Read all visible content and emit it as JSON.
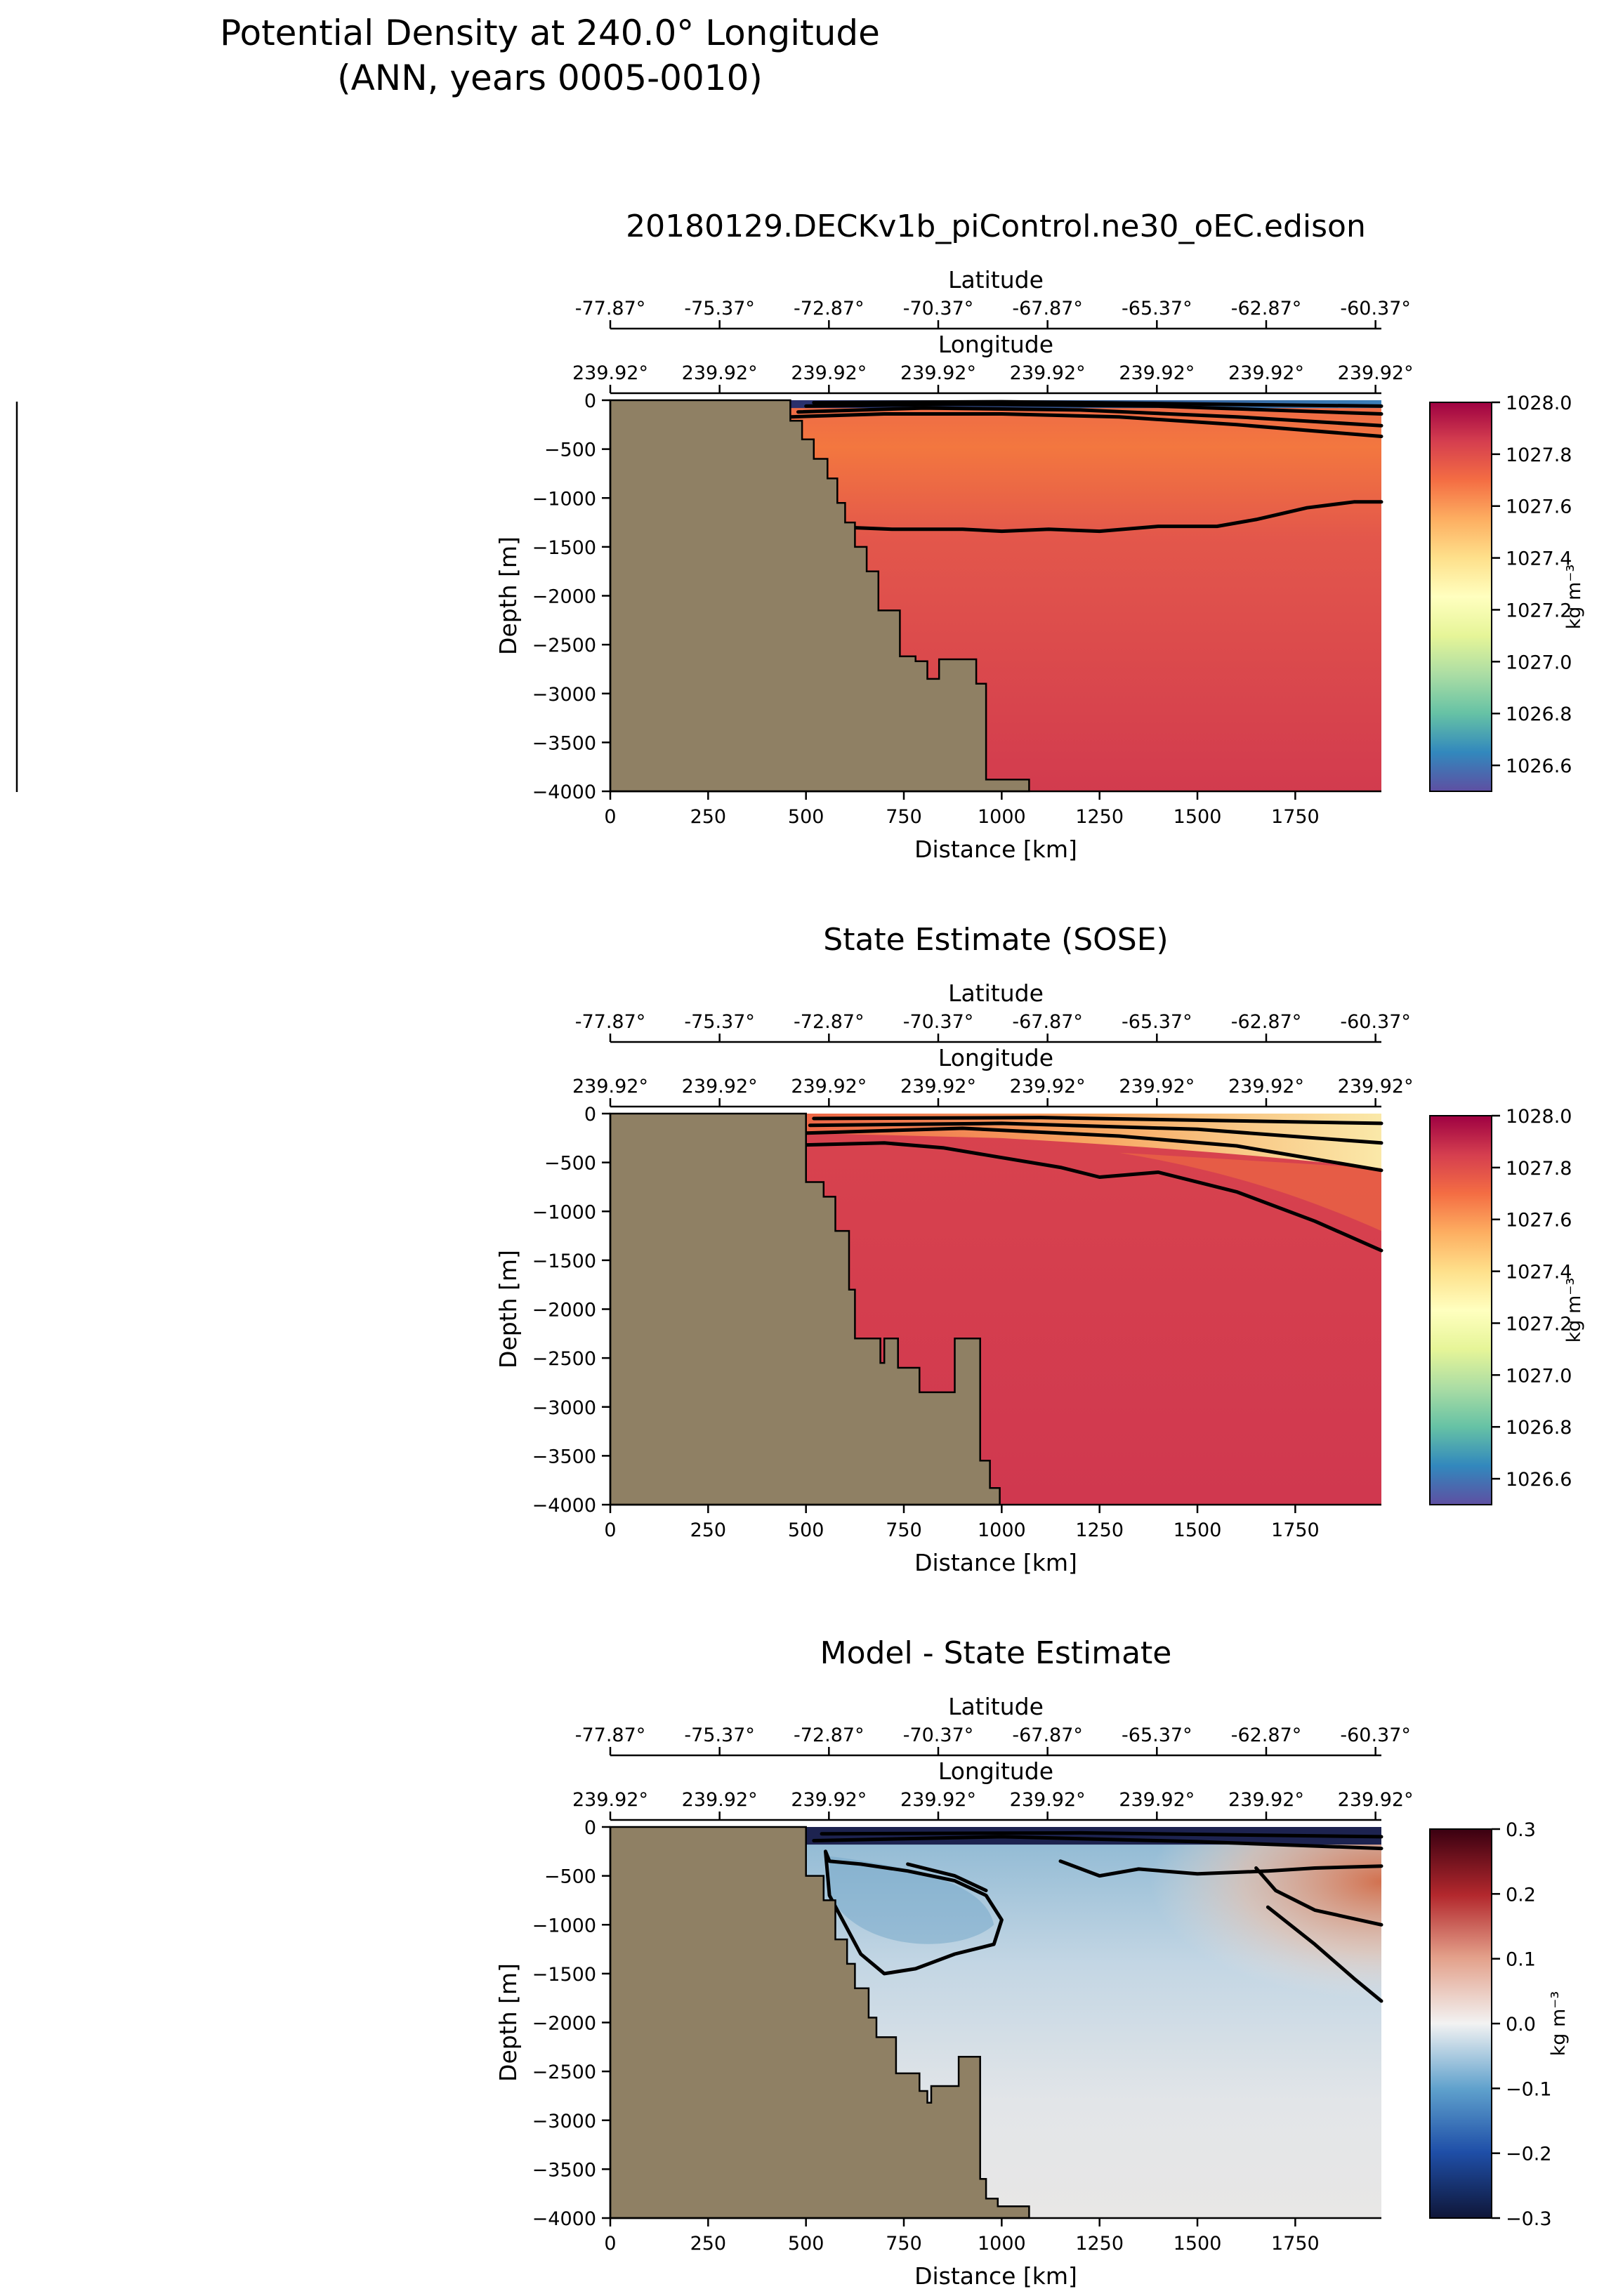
{
  "figure": {
    "title_line1": "Potential Density at 240.0° Longitude",
    "title_line2": "(ANN, years 0005-0010)"
  },
  "chart_data": [
    {
      "type": "heatmap",
      "title": "20180129.DECKv1b_piControl.ne30_oEC.edison",
      "xlabel": "Distance [km]",
      "ylabel": "Depth [m]",
      "top_axis1_label": "Latitude",
      "top_axis2_label": "Longitude",
      "xlim": [
        0,
        1970
      ],
      "ylim": [
        -4000,
        0
      ],
      "x_ticks": [
        0,
        250,
        500,
        750,
        1000,
        1250,
        1500,
        1750
      ],
      "y_ticks": [
        0,
        -500,
        -1000,
        -1500,
        -2000,
        -2500,
        -3000,
        -3500,
        -4000
      ],
      "latitude_ticks": [
        "-77.87°",
        "-75.37°",
        "-72.87°",
        "-70.37°",
        "-67.87°",
        "-65.37°",
        "-62.87°",
        "-60.37°"
      ],
      "longitude_ticks": [
        "239.92°",
        "239.92°",
        "239.92°",
        "239.92°",
        "239.92°",
        "239.92°",
        "239.92°",
        "239.92°"
      ],
      "colorbar": {
        "label": "kg m⁻³",
        "min": 1026.5,
        "max": 1028.0,
        "ticks": [
          1026.6,
          1026.8,
          1027.0,
          1027.2,
          1027.4,
          1027.6,
          1027.8,
          1028.0
        ],
        "colormap": "Spectral_r"
      },
      "bathymetry": [
        [
          0,
          0
        ],
        [
          460,
          0
        ],
        [
          460,
          -210
        ],
        [
          490,
          -210
        ],
        [
          490,
          -400
        ],
        [
          520,
          -400
        ],
        [
          520,
          -600
        ],
        [
          555,
          -600
        ],
        [
          555,
          -800
        ],
        [
          580,
          -800
        ],
        [
          580,
          -1050
        ],
        [
          600,
          -1050
        ],
        [
          600,
          -1250
        ],
        [
          625,
          -1250
        ],
        [
          625,
          -1500
        ],
        [
          655,
          -1500
        ],
        [
          655,
          -1750
        ],
        [
          685,
          -1750
        ],
        [
          685,
          -2150
        ],
        [
          740,
          -2150
        ],
        [
          740,
          -2620
        ],
        [
          780,
          -2620
        ],
        [
          780,
          -2670
        ],
        [
          810,
          -2670
        ],
        [
          810,
          -2850
        ],
        [
          840,
          -2850
        ],
        [
          840,
          -2650
        ],
        [
          935,
          -2650
        ],
        [
          935,
          -2900
        ],
        [
          960,
          -2900
        ],
        [
          960,
          -3880
        ],
        [
          1070,
          -3880
        ],
        [
          1070,
          -4000
        ],
        [
          0,
          -4000
        ]
      ],
      "contours": [
        [
          [
            460,
            -170
          ],
          [
            700,
            -140
          ],
          [
            1000,
            -140
          ],
          [
            1300,
            -170
          ],
          [
            1600,
            -250
          ],
          [
            1970,
            -370
          ]
        ],
        [
          [
            480,
            -120
          ],
          [
            800,
            -80
          ],
          [
            1200,
            -100
          ],
          [
            1600,
            -170
          ],
          [
            1970,
            -260
          ]
        ],
        [
          [
            500,
            -60
          ],
          [
            900,
            -40
          ],
          [
            1400,
            -60
          ],
          [
            1970,
            -140
          ]
        ],
        [
          [
            520,
            -25
          ],
          [
            1000,
            -15
          ],
          [
            1970,
            -60
          ]
        ],
        [
          [
            600,
            -1300
          ],
          [
            720,
            -1320
          ],
          [
            900,
            -1320
          ],
          [
            1000,
            -1340
          ],
          [
            1120,
            -1320
          ],
          [
            1250,
            -1340
          ],
          [
            1400,
            -1290
          ],
          [
            1550,
            -1290
          ],
          [
            1650,
            -1220
          ],
          [
            1780,
            -1100
          ],
          [
            1900,
            -1040
          ],
          [
            1970,
            -1040
          ]
        ]
      ],
      "surface_layer": {
        "depth_to": -80,
        "x_from": 460,
        "color_left": "#2a2f6b",
        "color_right": "#3b7fb8"
      }
    },
    {
      "type": "heatmap",
      "title": "State Estimate (SOSE)",
      "xlabel": "Distance [km]",
      "ylabel": "Depth [m]",
      "top_axis1_label": "Latitude",
      "top_axis2_label": "Longitude",
      "xlim": [
        0,
        1970
      ],
      "ylim": [
        -4000,
        0
      ],
      "x_ticks": [
        0,
        250,
        500,
        750,
        1000,
        1250,
        1500,
        1750
      ],
      "y_ticks": [
        0,
        -500,
        -1000,
        -1500,
        -2000,
        -2500,
        -3000,
        -3500,
        -4000
      ],
      "latitude_ticks": [
        "-77.87°",
        "-75.37°",
        "-72.87°",
        "-70.37°",
        "-67.87°",
        "-65.37°",
        "-62.87°",
        "-60.37°"
      ],
      "longitude_ticks": [
        "239.92°",
        "239.92°",
        "239.92°",
        "239.92°",
        "239.92°",
        "239.92°",
        "239.92°",
        "239.92°"
      ],
      "colorbar": {
        "label": "kg m⁻³",
        "min": 1026.5,
        "max": 1028.0,
        "ticks": [
          1026.6,
          1026.8,
          1027.0,
          1027.2,
          1027.4,
          1027.6,
          1027.8,
          1028.0
        ],
        "colormap": "Spectral_r"
      },
      "bathymetry": [
        [
          0,
          0
        ],
        [
          500,
          0
        ],
        [
          500,
          -700
        ],
        [
          545,
          -700
        ],
        [
          545,
          -850
        ],
        [
          575,
          -850
        ],
        [
          575,
          -1200
        ],
        [
          610,
          -1200
        ],
        [
          610,
          -1800
        ],
        [
          625,
          -1800
        ],
        [
          625,
          -2300
        ],
        [
          690,
          -2300
        ],
        [
          690,
          -2550
        ],
        [
          700,
          -2550
        ],
        [
          700,
          -2300
        ],
        [
          735,
          -2300
        ],
        [
          735,
          -2600
        ],
        [
          790,
          -2600
        ],
        [
          790,
          -2850
        ],
        [
          880,
          -2850
        ],
        [
          880,
          -2300
        ],
        [
          945,
          -2300
        ],
        [
          945,
          -3550
        ],
        [
          970,
          -3550
        ],
        [
          970,
          -3830
        ],
        [
          995,
          -3830
        ],
        [
          995,
          -4000
        ],
        [
          0,
          -4000
        ]
      ],
      "contours": [
        [
          [
            500,
            -320
          ],
          [
            700,
            -300
          ],
          [
            850,
            -350
          ],
          [
            1000,
            -450
          ],
          [
            1150,
            -550
          ],
          [
            1250,
            -650
          ],
          [
            1400,
            -600
          ],
          [
            1600,
            -800
          ],
          [
            1800,
            -1100
          ],
          [
            1970,
            -1400
          ]
        ],
        [
          [
            500,
            -200
          ],
          [
            900,
            -150
          ],
          [
            1300,
            -230
          ],
          [
            1600,
            -330
          ],
          [
            1970,
            -580
          ]
        ],
        [
          [
            510,
            -120
          ],
          [
            1000,
            -100
          ],
          [
            1500,
            -160
          ],
          [
            1970,
            -300
          ]
        ],
        [
          [
            520,
            -50
          ],
          [
            1100,
            -40
          ],
          [
            1970,
            -100
          ]
        ]
      ],
      "surface_layer": {
        "depth_to": 0,
        "x_from": 500,
        "color_left": "#ffffff",
        "color_right": "#ffffff"
      }
    },
    {
      "type": "heatmap",
      "title": "Model - State Estimate",
      "xlabel": "Distance [km]",
      "ylabel": "Depth [m]",
      "top_axis1_label": "Latitude",
      "top_axis2_label": "Longitude",
      "xlim": [
        0,
        1970
      ],
      "ylim": [
        -4000,
        0
      ],
      "x_ticks": [
        0,
        250,
        500,
        750,
        1000,
        1250,
        1500,
        1750
      ],
      "y_ticks": [
        0,
        -500,
        -1000,
        -1500,
        -2000,
        -2500,
        -3000,
        -3500,
        -4000
      ],
      "latitude_ticks": [
        "-77.87°",
        "-75.37°",
        "-72.87°",
        "-70.37°",
        "-67.87°",
        "-65.37°",
        "-62.87°",
        "-60.37°"
      ],
      "longitude_ticks": [
        "239.92°",
        "239.92°",
        "239.92°",
        "239.92°",
        "239.92°",
        "239.92°",
        "239.92°",
        "239.92°"
      ],
      "colorbar": {
        "label": "kg m⁻³",
        "min": -0.3,
        "max": 0.3,
        "ticks": [
          -0.3,
          -0.2,
          -0.1,
          0.0,
          0.1,
          0.2,
          0.3
        ],
        "colormap": "RdBu_r"
      },
      "bathymetry": [
        [
          0,
          0
        ],
        [
          500,
          0
        ],
        [
          500,
          -500
        ],
        [
          545,
          -500
        ],
        [
          545,
          -750
        ],
        [
          575,
          -750
        ],
        [
          575,
          -1150
        ],
        [
          605,
          -1150
        ],
        [
          605,
          -1400
        ],
        [
          625,
          -1400
        ],
        [
          625,
          -1650
        ],
        [
          660,
          -1650
        ],
        [
          660,
          -1950
        ],
        [
          680,
          -1950
        ],
        [
          680,
          -2150
        ],
        [
          730,
          -2150
        ],
        [
          730,
          -2520
        ],
        [
          790,
          -2520
        ],
        [
          790,
          -2700
        ],
        [
          810,
          -2700
        ],
        [
          810,
          -2820
        ],
        [
          820,
          -2820
        ],
        [
          820,
          -2650
        ],
        [
          890,
          -2650
        ],
        [
          890,
          -2350
        ],
        [
          945,
          -2350
        ],
        [
          945,
          -3600
        ],
        [
          960,
          -3600
        ],
        [
          960,
          -3800
        ],
        [
          990,
          -3800
        ],
        [
          990,
          -3880
        ],
        [
          1070,
          -3880
        ],
        [
          1070,
          -4000
        ],
        [
          0,
          -4000
        ]
      ],
      "contours": [
        [
          [
            550,
            -250
          ],
          [
            560,
            -700
          ],
          [
            600,
            -1000
          ],
          [
            640,
            -1300
          ],
          [
            700,
            -1500
          ],
          [
            780,
            -1450
          ],
          [
            880,
            -1300
          ],
          [
            980,
            -1200
          ],
          [
            1000,
            -950
          ],
          [
            960,
            -700
          ],
          [
            880,
            -550
          ],
          [
            760,
            -450
          ],
          [
            640,
            -380
          ],
          [
            560,
            -350
          ]
        ],
        [
          [
            760,
            -380
          ],
          [
            880,
            -500
          ],
          [
            960,
            -650
          ]
        ],
        [
          [
            1150,
            -350
          ],
          [
            1250,
            -500
          ],
          [
            1350,
            -430
          ],
          [
            1500,
            -480
          ],
          [
            1680,
            -450
          ],
          [
            1800,
            -420
          ],
          [
            1970,
            -400
          ]
        ],
        [
          [
            1650,
            -420
          ],
          [
            1700,
            -650
          ],
          [
            1800,
            -850
          ],
          [
            1970,
            -1000
          ]
        ],
        [
          [
            1680,
            -820
          ],
          [
            1800,
            -1200
          ],
          [
            1900,
            -1550
          ],
          [
            1970,
            -1780
          ]
        ],
        [
          [
            520,
            -140
          ],
          [
            1000,
            -100
          ],
          [
            1500,
            -150
          ],
          [
            1970,
            -220
          ]
        ],
        [
          [
            540,
            -70
          ],
          [
            1200,
            -60
          ],
          [
            1970,
            -100
          ]
        ]
      ],
      "surface_layer": {
        "depth_to": -180,
        "x_from": 500,
        "color_left": "#1d2350",
        "color_right": "#1d2350"
      }
    }
  ]
}
